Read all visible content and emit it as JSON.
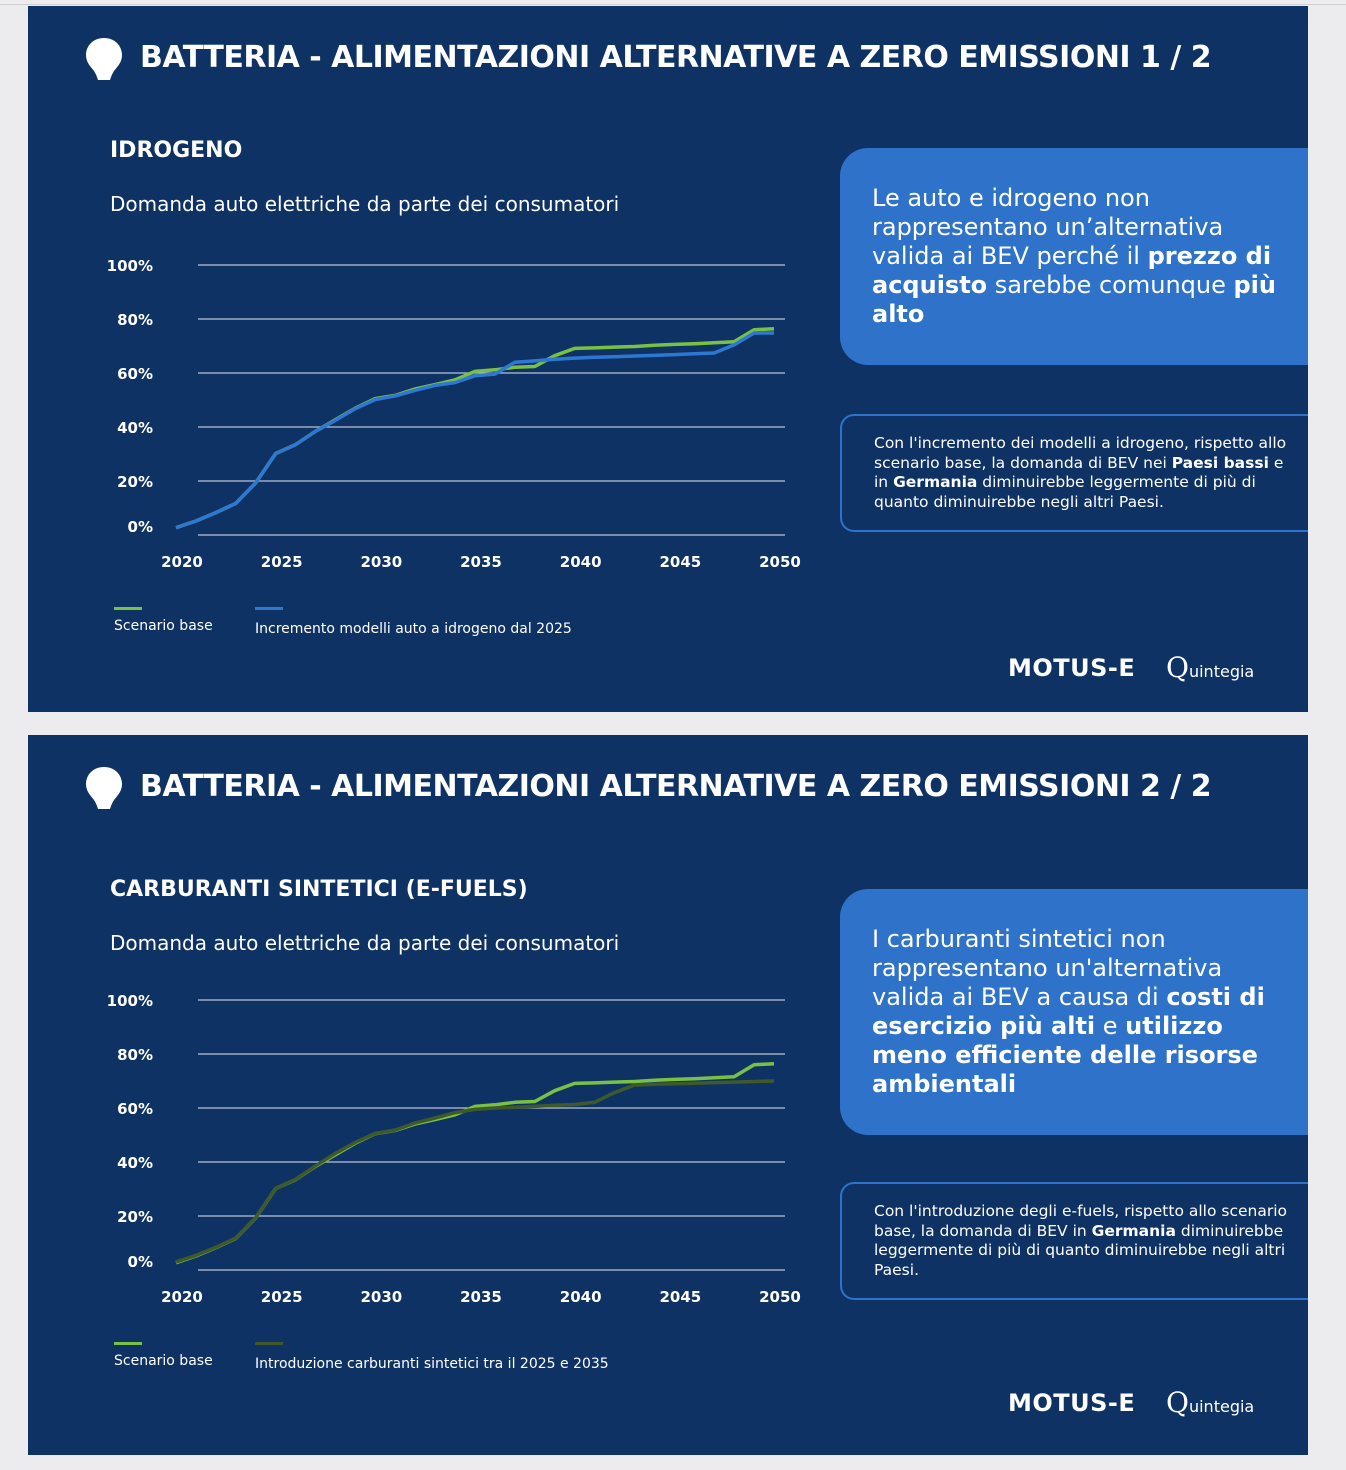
{
  "slides": [
    {
      "title": "BATTERIA - ALIMENTAZIONI ALTERNATIVE A ZERO EMISSIONI 1 / 2",
      "subtitle": "IDROGENO",
      "chart_title": "Domanda auto elettriche da parte dei consumatori",
      "callout": [
        {
          "t": "Le auto e idrogeno non rappresentano un’alternativa valida ai BEV perché il "
        },
        {
          "t": "prezzo di acquisto",
          "b": true
        },
        {
          "t": " sarebbe comunque "
        },
        {
          "t": "più alto",
          "b": true
        }
      ],
      "note": [
        {
          "t": "Con l'incremento dei modelli a idrogeno, rispetto allo scenario base, la domanda di BEV nei "
        },
        {
          "t": "Paesi bassi",
          "b": true
        },
        {
          "t": " e in "
        },
        {
          "t": "Germania",
          "b": true
        },
        {
          "t": " diminuirebbe leggermente di più di quanto diminuirebbe negli altri Paesi."
        }
      ],
      "logos": {
        "motus": "MOTUS-E",
        "quintegia": "uintegia"
      }
    },
    {
      "title": "BATTERIA - ALIMENTAZIONI ALTERNATIVE A ZERO EMISSIONI 2 / 2",
      "subtitle": "CARBURANTI SINTETICI (E-FUELS)",
      "chart_title": "Domanda auto elettriche da parte dei consumatori",
      "callout": [
        {
          "t": "I carburanti sintetici non rappresentano un'alternativa valida ai BEV a causa di "
        },
        {
          "t": "costi di esercizio più alti",
          "b": true
        },
        {
          "t": " e "
        },
        {
          "t": "utilizzo meno efficiente delle risorse ambientali",
          "b": true
        }
      ],
      "note": [
        {
          "t": "Con l'introduzione degli e-fuels, rispetto allo scenario base, la domanda di BEV in "
        },
        {
          "t": "Germania",
          "b": true
        },
        {
          "t": " diminuirebbe leggermente di più di quanto diminuirebbe negli altri Paesi."
        }
      ],
      "logos": {
        "motus": "MOTUS-E",
        "quintegia": "uintegia"
      }
    }
  ],
  "chart_data": [
    {
      "type": "line",
      "title": "Domanda auto elettriche da parte dei consumatori",
      "ylim": [
        0,
        100
      ],
      "yticks": [
        "0%",
        "20%",
        "40%",
        "60%",
        "80%",
        "100%"
      ],
      "xticks": [
        "2020",
        "2025",
        "2030",
        "2035",
        "2040",
        "2045",
        "2050"
      ],
      "x_range": [
        2020,
        2050
      ],
      "series": [
        {
          "name": "Scenario base",
          "color": "#79c143",
          "values": [
            2.7,
            5.2,
            8.3,
            11.7,
            19.3,
            30.2,
            33.5,
            38.4,
            42.7,
            47.0,
            50.5,
            51.7,
            54.1,
            55.7,
            57.5,
            60.6,
            61.2,
            62.1,
            62.4,
            66.4,
            69.1,
            69.3,
            69.6,
            69.8,
            70.3,
            70.6,
            70.8,
            71.2,
            71.6,
            76.0,
            76.4
          ]
        },
        {
          "name": "Incremento modelli auto a idrogeno dal 2025",
          "color": "#2f78d2",
          "values": [
            2.7,
            5.2,
            8.3,
            11.7,
            19.3,
            30.2,
            33.5,
            38.4,
            42.5,
            46.8,
            50.2,
            51.5,
            53.6,
            55.4,
            56.5,
            59.0,
            59.6,
            64.0,
            64.5,
            65.1,
            65.5,
            65.8,
            66.0,
            66.3,
            66.5,
            66.8,
            67.1,
            67.4,
            70.4,
            74.8,
            74.8
          ]
        }
      ]
    },
    {
      "type": "line",
      "title": "Domanda auto elettriche da parte dei consumatori",
      "ylim": [
        0,
        100
      ],
      "yticks": [
        "0%",
        "20%",
        "40%",
        "60%",
        "80%",
        "100%"
      ],
      "xticks": [
        "2020",
        "2025",
        "2030",
        "2035",
        "2040",
        "2045",
        "2050"
      ],
      "x_range": [
        2020,
        2050
      ],
      "series": [
        {
          "name": "Scenario base",
          "color": "#79c143",
          "values": [
            2.7,
            5.2,
            8.3,
            11.7,
            19.3,
            30.2,
            33.5,
            38.4,
            42.7,
            47.0,
            50.5,
            51.7,
            54.1,
            55.7,
            57.5,
            60.6,
            61.2,
            62.1,
            62.4,
            66.4,
            69.1,
            69.3,
            69.6,
            69.8,
            70.3,
            70.6,
            70.8,
            71.2,
            71.6,
            76.0,
            76.4
          ]
        },
        {
          "name": "Introduzione carburanti sintetici tra il 2025 e 2035",
          "color": "#3f5a2a",
          "values": [
            3.0,
            5.4,
            8.4,
            11.8,
            19.4,
            30.2,
            33.6,
            38.6,
            43.2,
            47.3,
            50.6,
            51.8,
            54.5,
            56.3,
            58.3,
            59.5,
            60.0,
            60.3,
            60.6,
            61.0,
            61.3,
            62.1,
            65.7,
            68.5,
            68.8,
            69.0,
            69.2,
            69.4,
            69.6,
            69.8,
            70.0
          ]
        }
      ]
    }
  ]
}
